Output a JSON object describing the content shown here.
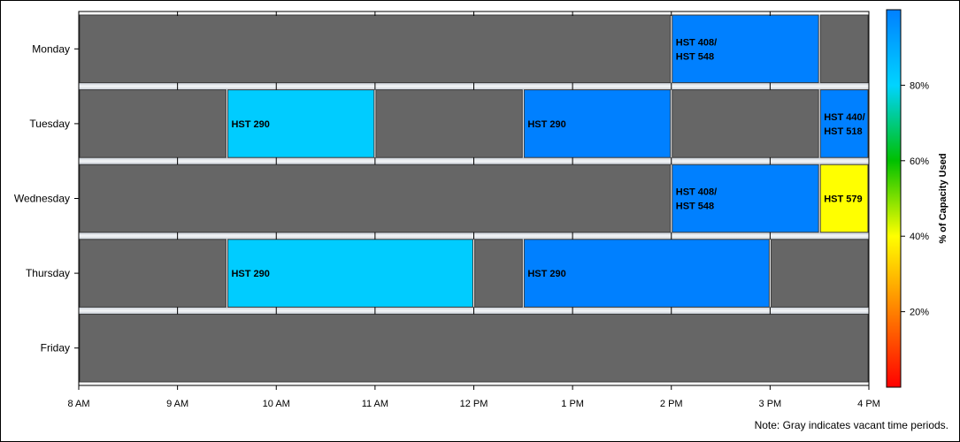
{
  "chart_data": {
    "type": "bar",
    "subtype": "schedule-timeline",
    "title": "",
    "days": [
      "Monday",
      "Tuesday",
      "Wednesday",
      "Thursday",
      "Friday"
    ],
    "x_ticks": [
      "8 AM",
      "9 AM",
      "10 AM",
      "11 AM",
      "12 PM",
      "1 PM",
      "2 PM",
      "3 PM",
      "4 PM"
    ],
    "x_range_hours": [
      8,
      16
    ],
    "vacant_color": "#666666",
    "segments": [
      {
        "day": "Monday",
        "start": 8,
        "end": 14,
        "label": "",
        "capacity_pct": null
      },
      {
        "day": "Monday",
        "start": 14,
        "end": 15.5,
        "label": "HST 408/\nHST 548",
        "capacity_pct": 92
      },
      {
        "day": "Monday",
        "start": 15.5,
        "end": 16,
        "label": "",
        "capacity_pct": null
      },
      {
        "day": "Tuesday",
        "start": 8,
        "end": 9.5,
        "label": "",
        "capacity_pct": null
      },
      {
        "day": "Tuesday",
        "start": 9.5,
        "end": 11,
        "label": "HST 290",
        "capacity_pct": 83
      },
      {
        "day": "Tuesday",
        "start": 11,
        "end": 12.5,
        "label": "",
        "capacity_pct": null
      },
      {
        "day": "Tuesday",
        "start": 12.5,
        "end": 14,
        "label": "HST 290",
        "capacity_pct": 92
      },
      {
        "day": "Tuesday",
        "start": 14,
        "end": 15.5,
        "label": "",
        "capacity_pct": null
      },
      {
        "day": "Tuesday",
        "start": 15.5,
        "end": 16,
        "label": "HST 440/\nHST 518",
        "capacity_pct": 92
      },
      {
        "day": "Wednesday",
        "start": 8,
        "end": 14,
        "label": "",
        "capacity_pct": null
      },
      {
        "day": "Wednesday",
        "start": 14,
        "end": 15.5,
        "label": "HST 408/\nHST 548",
        "capacity_pct": 92
      },
      {
        "day": "Wednesday",
        "start": 15.5,
        "end": 16,
        "label": "HST 579",
        "capacity_pct": 50
      },
      {
        "day": "Thursday",
        "start": 8,
        "end": 9.5,
        "label": "",
        "capacity_pct": null
      },
      {
        "day": "Thursday",
        "start": 9.5,
        "end": 12,
        "label": "HST 290",
        "capacity_pct": 83
      },
      {
        "day": "Thursday",
        "start": 12,
        "end": 12.5,
        "label": "",
        "capacity_pct": null
      },
      {
        "day": "Thursday",
        "start": 12.5,
        "end": 15,
        "label": "HST 290",
        "capacity_pct": 92
      },
      {
        "day": "Thursday",
        "start": 15,
        "end": 16,
        "label": "",
        "capacity_pct": null
      },
      {
        "day": "Friday",
        "start": 8,
        "end": 16,
        "label": "",
        "capacity_pct": null
      }
    ],
    "colorbar": {
      "label": "% of Capacity Used",
      "range": [
        0,
        100
      ],
      "ticks": [
        20,
        40,
        60,
        80
      ],
      "tick_labels": [
        "20%",
        "40%",
        "60%",
        "80%"
      ],
      "colors": [
        "#ff0000",
        "#ff8000",
        "#ffff00",
        "#00c000",
        "#00d4ff",
        "#0080ff"
      ]
    },
    "note": "Note: Gray indicates vacant time periods."
  }
}
